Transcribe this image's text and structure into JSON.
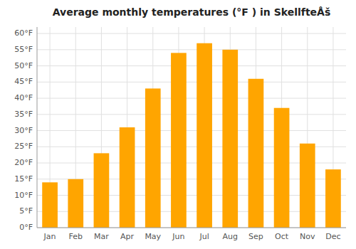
{
  "chart_data": {
    "type": "bar",
    "title": "Average monthly temperatures (°F ) in SkellfteÅš",
    "categories": [
      "Jan",
      "Feb",
      "Mar",
      "Apr",
      "May",
      "Jun",
      "Jul",
      "Aug",
      "Sep",
      "Oct",
      "Nov",
      "Dec"
    ],
    "values": [
      14,
      15,
      23,
      31,
      43,
      54,
      57,
      55,
      46,
      37,
      26,
      18
    ],
    "color": "#FFA500",
    "ylim": [
      0,
      62
    ],
    "yticks": [
      {
        "value": 0,
        "label": "0°F"
      },
      {
        "value": 5,
        "label": "5°F"
      },
      {
        "value": 10,
        "label": "10°F"
      },
      {
        "value": 15,
        "label": "15°F"
      },
      {
        "value": 20,
        "label": "20°F"
      },
      {
        "value": 25,
        "label": "25°F"
      },
      {
        "value": 30,
        "label": "30°F"
      },
      {
        "value": 35,
        "label": "35°F"
      },
      {
        "value": 40,
        "label": "40°F"
      },
      {
        "value": 45,
        "label": "45°F"
      },
      {
        "value": 50,
        "label": "50°F"
      },
      {
        "value": 55,
        "label": "55°F"
      },
      {
        "value": 60,
        "label": "60°F"
      }
    ],
    "grid": true
  }
}
